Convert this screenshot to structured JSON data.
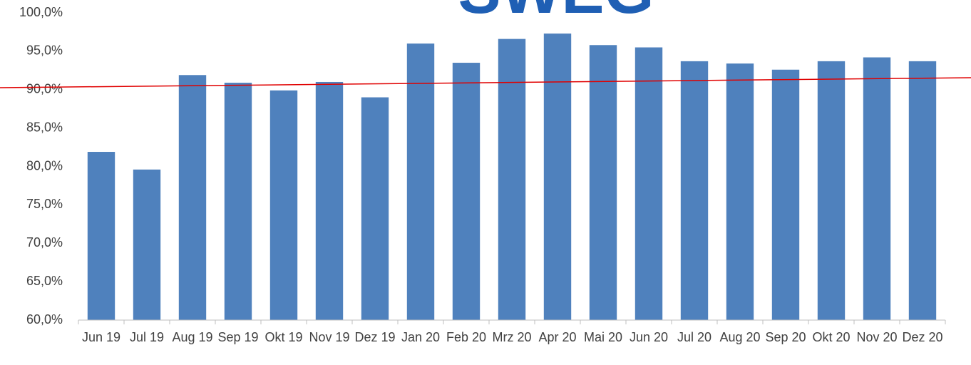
{
  "chart_data": {
    "type": "bar",
    "logo": "SWEG",
    "categories": [
      "Jun 19",
      "Jul 19",
      "Aug 19",
      "Sep 19",
      "Okt 19",
      "Nov 19",
      "Dez 19",
      "Jan 20",
      "Feb 20",
      "Mrz 20",
      "Apr 20",
      "Mai 20",
      "Jun 20",
      "Jul 20",
      "Aug 20",
      "Sep 20",
      "Okt 20",
      "Nov 20",
      "Dez 20"
    ],
    "values": [
      81.9,
      79.6,
      91.9,
      90.9,
      89.9,
      91.0,
      89.0,
      96.0,
      93.5,
      96.6,
      97.3,
      95.8,
      95.5,
      93.7,
      93.4,
      92.6,
      93.7,
      94.2,
      93.7
    ],
    "color": "#4f81bd",
    "ylim": [
      60,
      100
    ],
    "yticks": [
      {
        "value": 60,
        "label": "60,0%"
      },
      {
        "value": 65,
        "label": "65,0%"
      },
      {
        "value": 70,
        "label": "70,0%"
      },
      {
        "value": 75,
        "label": "75,0%"
      },
      {
        "value": 80,
        "label": "80,0%"
      },
      {
        "value": 85,
        "label": "85,0%"
      },
      {
        "value": 90,
        "label": "90,0%"
      },
      {
        "value": 95,
        "label": "95,0%"
      },
      {
        "value": 100,
        "label": "100,0%"
      }
    ],
    "grid": false
  }
}
